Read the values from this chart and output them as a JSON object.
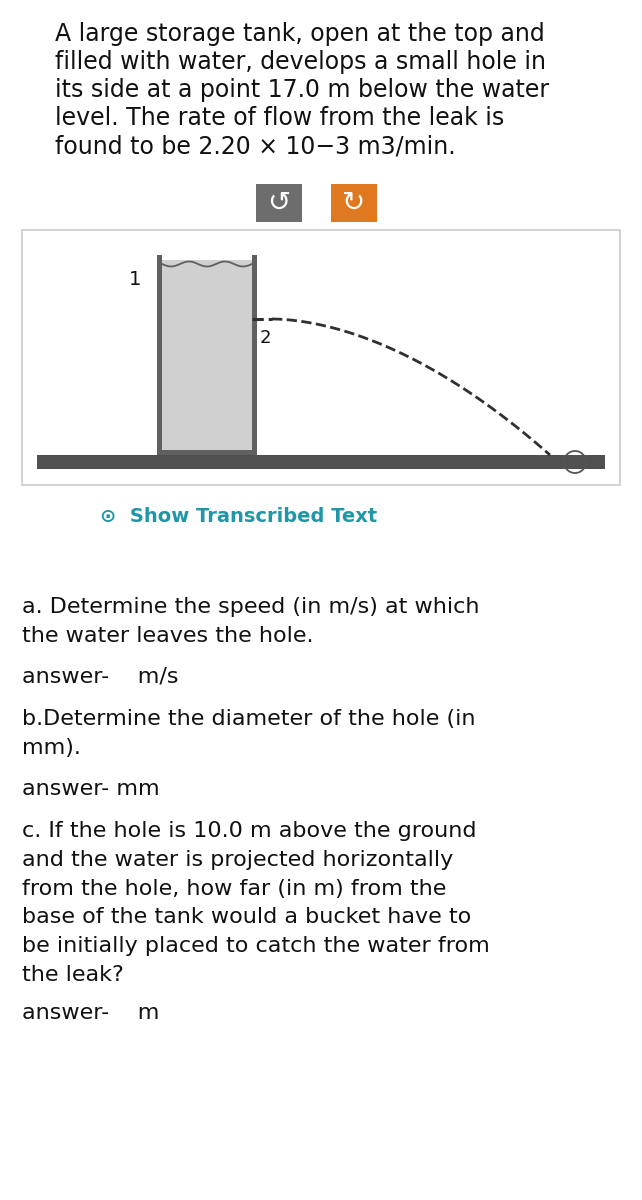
{
  "bg_color": "#ffffff",
  "title_line1": "A large storage tank, open at the top and",
  "title_line2": "filled with water, develops a small hole in",
  "title_line3": "its side at a point 17.0 m below the water",
  "title_line4": "level. The rate of flow from the leak is",
  "title_line5": "found to be 2.20 × 10−3 m3/min.",
  "show_transcribed_text": "⊙  Show Transcribed Text",
  "show_transcribed_color": "#2196a6",
  "btn1_color": "#6d6d6d",
  "btn2_color": "#e07820",
  "q_a": "a. Determine the speed (in m/s) at which\nthe water leaves the hole.",
  "ans_a": "answer-    m/s",
  "q_b": "b.Determine the diameter of the hole (in\nmm).",
  "ans_b": "answer- mm",
  "q_c": "c. If the hole is 10.0 m above the ground\nand the water is projected horizontally\nfrom the hole, how far (in m) from the\nbase of the tank would a bucket have to\nbe initially placed to catch the water from\nthe leak?",
  "ans_c": "answer-    m",
  "font_size_title": 17,
  "font_size_body": 16,
  "font_size_answer": 16,
  "tank_fill_color": "#d0d0d0",
  "tank_wall_color": "#606060",
  "ground_color": "#505050",
  "arc_color": "#303030",
  "diagram_bg": "#ffffff",
  "diagram_border": "#cccccc",
  "text_color": "#111111",
  "btn_icon_color": "#ffffff"
}
